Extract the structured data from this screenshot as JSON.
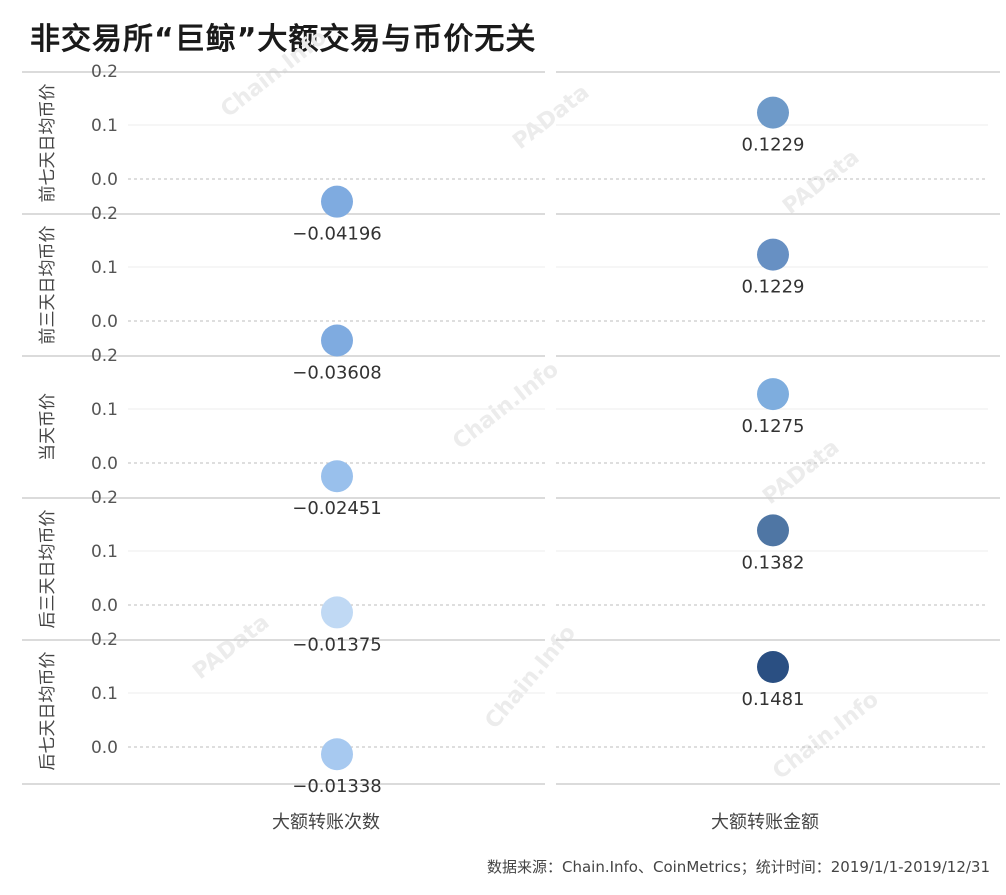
{
  "title": "非交易所“巨鲸”大额交易与币价无关",
  "source": "数据来源：Chain.Info、CoinMetrics；统计时间：2019/1/1-2019/12/31",
  "watermarks": [
    "PAData",
    "Chain.Info"
  ],
  "chart_data": {
    "type": "scatter",
    "title": "非交易所“巨鲸”大额交易与币价无关",
    "columns": [
      "大额转账次数",
      "大额转账金额"
    ],
    "rows": [
      "前七天日均币价",
      "前三天日均币价",
      "当天币价",
      "后三天日均币价",
      "后七天日均币价"
    ],
    "yticks": [
      "0.2",
      "0.1",
      "0.0"
    ],
    "ylim": [
      -0.05,
      0.2
    ],
    "grid": true,
    "values": [
      [
        -0.04196,
        0.1229
      ],
      [
        -0.03608,
        0.1229
      ],
      [
        -0.02451,
        0.1275
      ],
      [
        -0.01375,
        0.1382
      ],
      [
        -0.01338,
        0.1481
      ]
    ],
    "labels": [
      [
        "−0.04196",
        "0.1229"
      ],
      [
        "−0.03608",
        "0.1229"
      ],
      [
        "−0.02451",
        "0.1275"
      ],
      [
        "−0.01375",
        "0.1382"
      ],
      [
        "−0.01338",
        "0.1481"
      ]
    ],
    "colors": [
      [
        "#7fabe0",
        "#6e9ac9"
      ],
      [
        "#7fabe0",
        "#6790c3"
      ],
      [
        "#99c0ec",
        "#7eadde"
      ],
      [
        "#c0d9f4",
        "#4f76a4"
      ],
      [
        "#a7c9f0",
        "#2a4f82"
      ]
    ]
  }
}
